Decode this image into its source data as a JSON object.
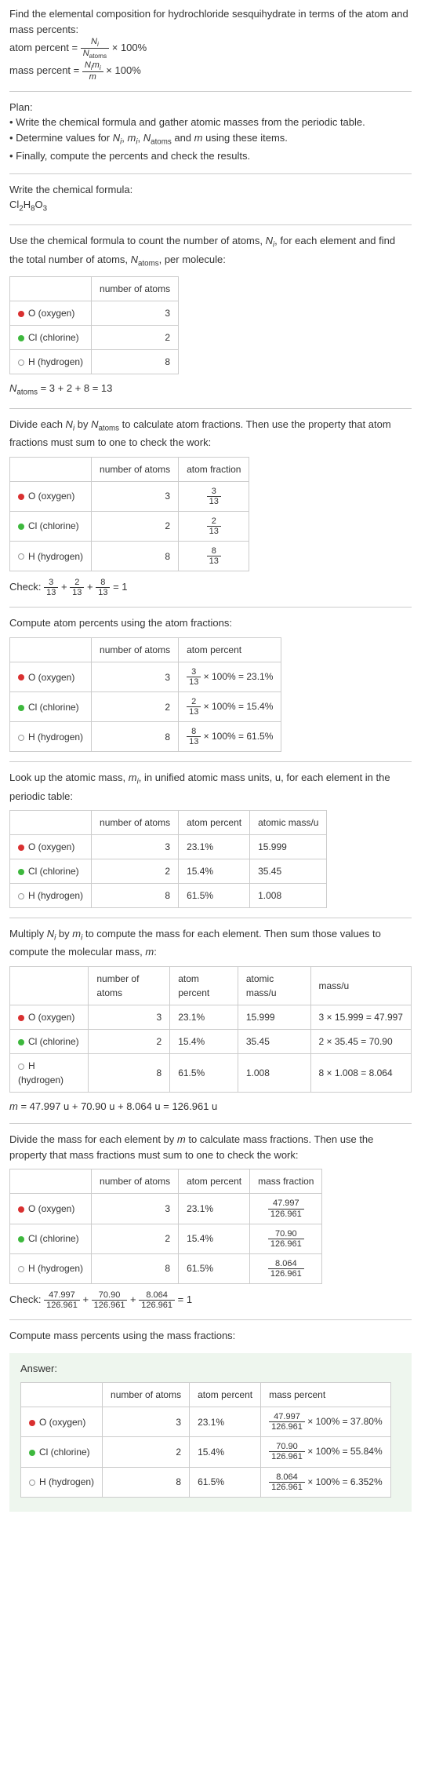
{
  "intro": {
    "line1": "Find the elemental composition for hydrochloride sesquihydrate in terms of the atom and mass percents:",
    "atom_percent_label": "atom percent = ",
    "atom_percent_frac_num": "N_i",
    "atom_percent_frac_den": "N_atoms",
    "times100": " × 100%",
    "mass_percent_label": "mass percent = ",
    "mass_percent_frac_num": "N_i m_i",
    "mass_percent_frac_den": "m"
  },
  "plan": {
    "header": "Plan:",
    "items": [
      "Write the chemical formula and gather atomic masses from the periodic table.",
      "Determine values for N_i, m_i, N_atoms and m using these items.",
      "Finally, compute the percents and check the results."
    ]
  },
  "formula_section": {
    "prompt": "Write the chemical formula:",
    "formula_html": "Cl₂H₈O₃"
  },
  "count_section": {
    "text": "Use the chemical formula to count the number of atoms, N_i, for each element and find the total number of atoms, N_atoms, per molecule:",
    "col_atoms": "number of atoms",
    "rows": [
      {
        "dot": "dot-o",
        "name": "O (oxygen)",
        "n": "3"
      },
      {
        "dot": "dot-cl",
        "name": "Cl (chlorine)",
        "n": "2"
      },
      {
        "dot": "dot-h",
        "name": "H (hydrogen)",
        "n": "8"
      }
    ],
    "sum": "N_atoms = 3 + 2 + 8 = 13"
  },
  "atomfrac_section": {
    "text": "Divide each N_i by N_atoms to calculate atom fractions. Then use the property that atom fractions must sum to one to check the work:",
    "col_atoms": "number of atoms",
    "col_frac": "atom fraction",
    "rows": [
      {
        "dot": "dot-o",
        "name": "O (oxygen)",
        "n": "3",
        "frac_num": "3",
        "frac_den": "13"
      },
      {
        "dot": "dot-cl",
        "name": "Cl (chlorine)",
        "n": "2",
        "frac_num": "2",
        "frac_den": "13"
      },
      {
        "dot": "dot-h",
        "name": "H (hydrogen)",
        "n": "8",
        "frac_num": "8",
        "frac_den": "13"
      }
    ],
    "check_label": "Check: ",
    "check_eq": " = 1"
  },
  "atompct_section": {
    "text": "Compute atom percents using the atom fractions:",
    "col_atoms": "number of atoms",
    "col_pct": "atom percent",
    "rows": [
      {
        "dot": "dot-o",
        "name": "O (oxygen)",
        "n": "3",
        "frac_num": "3",
        "frac_den": "13",
        "pct": " × 100% = 23.1%"
      },
      {
        "dot": "dot-cl",
        "name": "Cl (chlorine)",
        "n": "2",
        "frac_num": "2",
        "frac_den": "13",
        "pct": " × 100% = 15.4%"
      },
      {
        "dot": "dot-h",
        "name": "H (hydrogen)",
        "n": "8",
        "frac_num": "8",
        "frac_den": "13",
        "pct": " × 100% = 61.5%"
      }
    ]
  },
  "atomicmass_section": {
    "text": "Look up the atomic mass, m_i, in unified atomic mass units, u, for each element in the periodic table:",
    "col_atoms": "number of atoms",
    "col_pct": "atom percent",
    "col_mass": "atomic mass/u",
    "rows": [
      {
        "dot": "dot-o",
        "name": "O (oxygen)",
        "n": "3",
        "pct": "23.1%",
        "mass": "15.999"
      },
      {
        "dot": "dot-cl",
        "name": "Cl (chlorine)",
        "n": "2",
        "pct": "15.4%",
        "mass": "35.45"
      },
      {
        "dot": "dot-h",
        "name": "H (hydrogen)",
        "n": "8",
        "pct": "61.5%",
        "mass": "1.008"
      }
    ]
  },
  "multiply_section": {
    "text": "Multiply N_i by m_i to compute the mass for each element. Then sum those values to compute the molecular mass, m:",
    "col_atoms": "number of atoms",
    "col_pct": "atom percent",
    "col_amass": "atomic mass/u",
    "col_massu": "mass/u",
    "rows": [
      {
        "dot": "dot-o",
        "name": "O (oxygen)",
        "n": "3",
        "pct": "23.1%",
        "amass": "15.999",
        "calc": "3 × 15.999 = 47.997"
      },
      {
        "dot": "dot-cl",
        "name": "Cl (chlorine)",
        "n": "2",
        "pct": "15.4%",
        "amass": "35.45",
        "calc": "2 × 35.45 = 70.90"
      },
      {
        "dot": "dot-h",
        "name": "H (hydrogen)",
        "n": "8",
        "pct": "61.5%",
        "amass": "1.008",
        "calc": "8 × 1.008 = 8.064"
      }
    ],
    "sum": "m = 47.997 u + 70.90 u + 8.064 u = 126.961 u"
  },
  "massfrac_section": {
    "text": "Divide the mass for each element by m to calculate mass fractions. Then use the property that mass fractions must sum to one to check the work:",
    "col_atoms": "number of atoms",
    "col_pct": "atom percent",
    "col_mfrac": "mass fraction",
    "rows": [
      {
        "dot": "dot-o",
        "name": "O (oxygen)",
        "n": "3",
        "pct": "23.1%",
        "frac_num": "47.997",
        "frac_den": "126.961"
      },
      {
        "dot": "dot-cl",
        "name": "Cl (chlorine)",
        "n": "2",
        "pct": "15.4%",
        "frac_num": "70.90",
        "frac_den": "126.961"
      },
      {
        "dot": "dot-h",
        "name": "H (hydrogen)",
        "n": "8",
        "pct": "61.5%",
        "frac_num": "8.064",
        "frac_den": "126.961"
      }
    ],
    "check_label": "Check: ",
    "check_eq": " = 1"
  },
  "masspct_section": {
    "text": "Compute mass percents using the mass fractions:"
  },
  "answer": {
    "label": "Answer:",
    "col_atoms": "number of atoms",
    "col_pct": "atom percent",
    "col_mpct": "mass percent",
    "rows": [
      {
        "dot": "dot-o",
        "name": "O (oxygen)",
        "n": "3",
        "pct": "23.1%",
        "frac_num": "47.997",
        "frac_den": "126.961",
        "result": " × 100% = 37.80%"
      },
      {
        "dot": "dot-cl",
        "name": "Cl (chlorine)",
        "n": "2",
        "pct": "15.4%",
        "frac_num": "70.90",
        "frac_den": "126.961",
        "result": " × 100% = 55.84%"
      },
      {
        "dot": "dot-h",
        "name": "H (hydrogen)",
        "n": "8",
        "pct": "61.5%",
        "frac_num": "8.064",
        "frac_den": "126.961",
        "result": " × 100% = 6.352%"
      }
    ]
  }
}
